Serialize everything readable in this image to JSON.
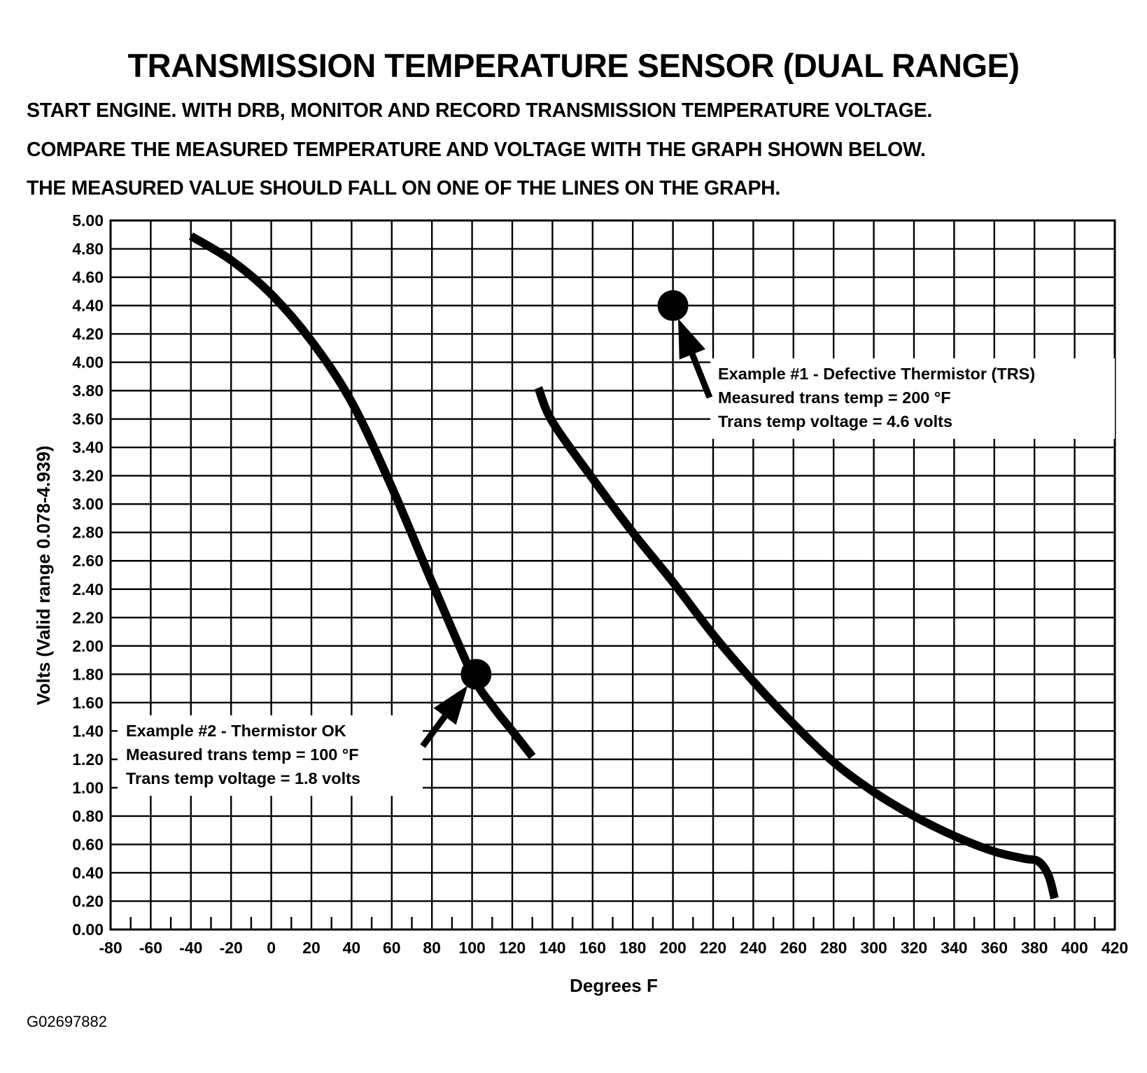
{
  "chart_data": {
    "type": "line",
    "title": "TRANSMISSION TEMPERATURE SENSOR (DUAL RANGE)",
    "instructions": [
      "START ENGINE.  WITH DRB, MONITOR AND RECORD TRANSMISSION TEMPERATURE VOLTAGE.",
      "COMPARE THE MEASURED TEMPERATURE AND VOLTAGE WITH THE GRAPH SHOWN BELOW.",
      "THE MEASURED VALUE SHOULD FALL ON ONE OF THE LINES ON THE GRAPH."
    ],
    "xlabel": "Degrees F",
    "ylabel": "Volts (Valid range 0.078-4.939)",
    "xlim": [
      -80,
      420
    ],
    "ylim": [
      0,
      5
    ],
    "x_ticks": [
      "-80",
      "-60",
      "-40",
      "-20",
      "0",
      "20",
      "40",
      "60",
      "80",
      "100",
      "120",
      "140",
      "160",
      "180",
      "200",
      "220",
      "240",
      "260",
      "280",
      "300",
      "320",
      "340",
      "360",
      "380",
      "400",
      "420"
    ],
    "y_ticks": [
      "0.00",
      "0.20",
      "0.40",
      "0.60",
      "0.80",
      "1.00",
      "1.20",
      "1.40",
      "1.60",
      "1.80",
      "2.00",
      "2.20",
      "2.40",
      "2.60",
      "2.80",
      "3.00",
      "3.20",
      "3.40",
      "3.60",
      "3.80",
      "4.00",
      "4.20",
      "4.40",
      "4.60",
      "4.80",
      "5.00"
    ],
    "grid": true,
    "series": [
      {
        "x": [
          -40,
          -20,
          0,
          20,
          40,
          60,
          80,
          100,
          110,
          120,
          130
        ],
        "y": [
          4.89,
          4.72,
          4.48,
          4.15,
          3.72,
          3.12,
          2.45,
          1.8,
          1.58,
          1.4,
          1.22
        ]
      },
      {
        "x": [
          133,
          140,
          160,
          180,
          200,
          220,
          240,
          260,
          280,
          300,
          320,
          340,
          360,
          375,
          382,
          387,
          390
        ],
        "y": [
          3.82,
          3.58,
          3.18,
          2.8,
          2.45,
          2.08,
          1.75,
          1.45,
          1.18,
          0.97,
          0.8,
          0.66,
          0.55,
          0.5,
          0.48,
          0.38,
          0.22
        ]
      }
    ],
    "examples": [
      {
        "x": 200,
        "y": 4.4,
        "lines": [
          "Example #1 - Defective Thermistor (TRS)",
          "Measured trans temp = 200 °F",
          "Trans temp voltage = 4.6 volts"
        ]
      },
      {
        "x": 102,
        "y": 1.8,
        "lines": [
          "Example #2 - Thermistor OK",
          "Measured trans temp = 100 °F",
          "Trans temp voltage = 1.8 volts"
        ]
      }
    ]
  },
  "figure_id": "G02697882"
}
